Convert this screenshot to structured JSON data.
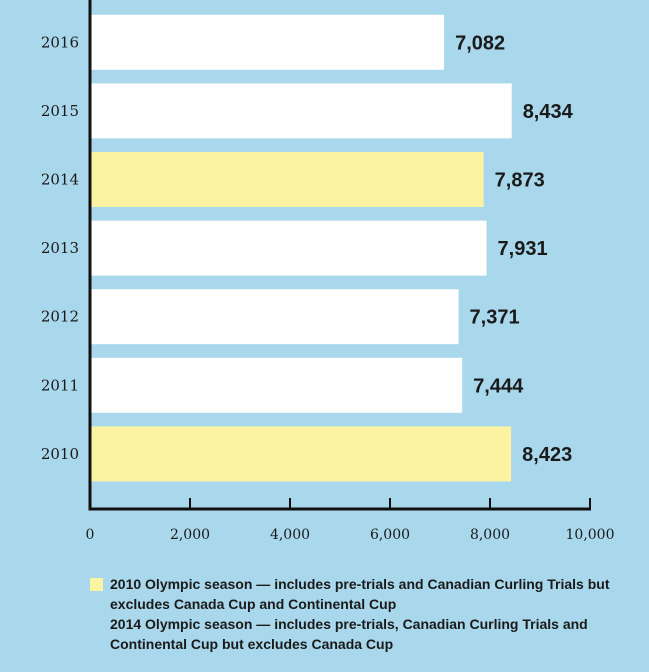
{
  "chart_data": {
    "type": "bar",
    "orientation": "horizontal",
    "categories": [
      "2016",
      "2015",
      "2014",
      "2013",
      "2012",
      "2011",
      "2010"
    ],
    "values": [
      7082,
      8434,
      7873,
      7931,
      7371,
      7444,
      8423
    ],
    "value_labels": [
      "7,082",
      "8,434",
      "7,873",
      "7,931",
      "7,371",
      "7,444",
      "8,423"
    ],
    "highlighted": [
      "2014",
      "2010"
    ],
    "xlim": [
      0,
      10000
    ],
    "xticks": [
      0,
      2000,
      4000,
      6000,
      8000,
      10000
    ],
    "xtick_labels": [
      "0",
      "2,000",
      "4,000",
      "6,000",
      "8,000",
      "10,000"
    ],
    "title": "",
    "xlabel": "",
    "ylabel": "",
    "grid": false
  },
  "notes": [
    "2010 Olympic season — includes pre-trials and Canadian Curling Trials but excludes Canada Cup and Continental Cup",
    "2014 Olympic season — includes pre-trials, Canadian Curling Trials and Continental Cup but excludes Canada Cup"
  ],
  "colors": {
    "background": "#a9d7ec",
    "bar": "#ffffff",
    "highlight": "#fbf3a2",
    "axis": "#111111"
  }
}
